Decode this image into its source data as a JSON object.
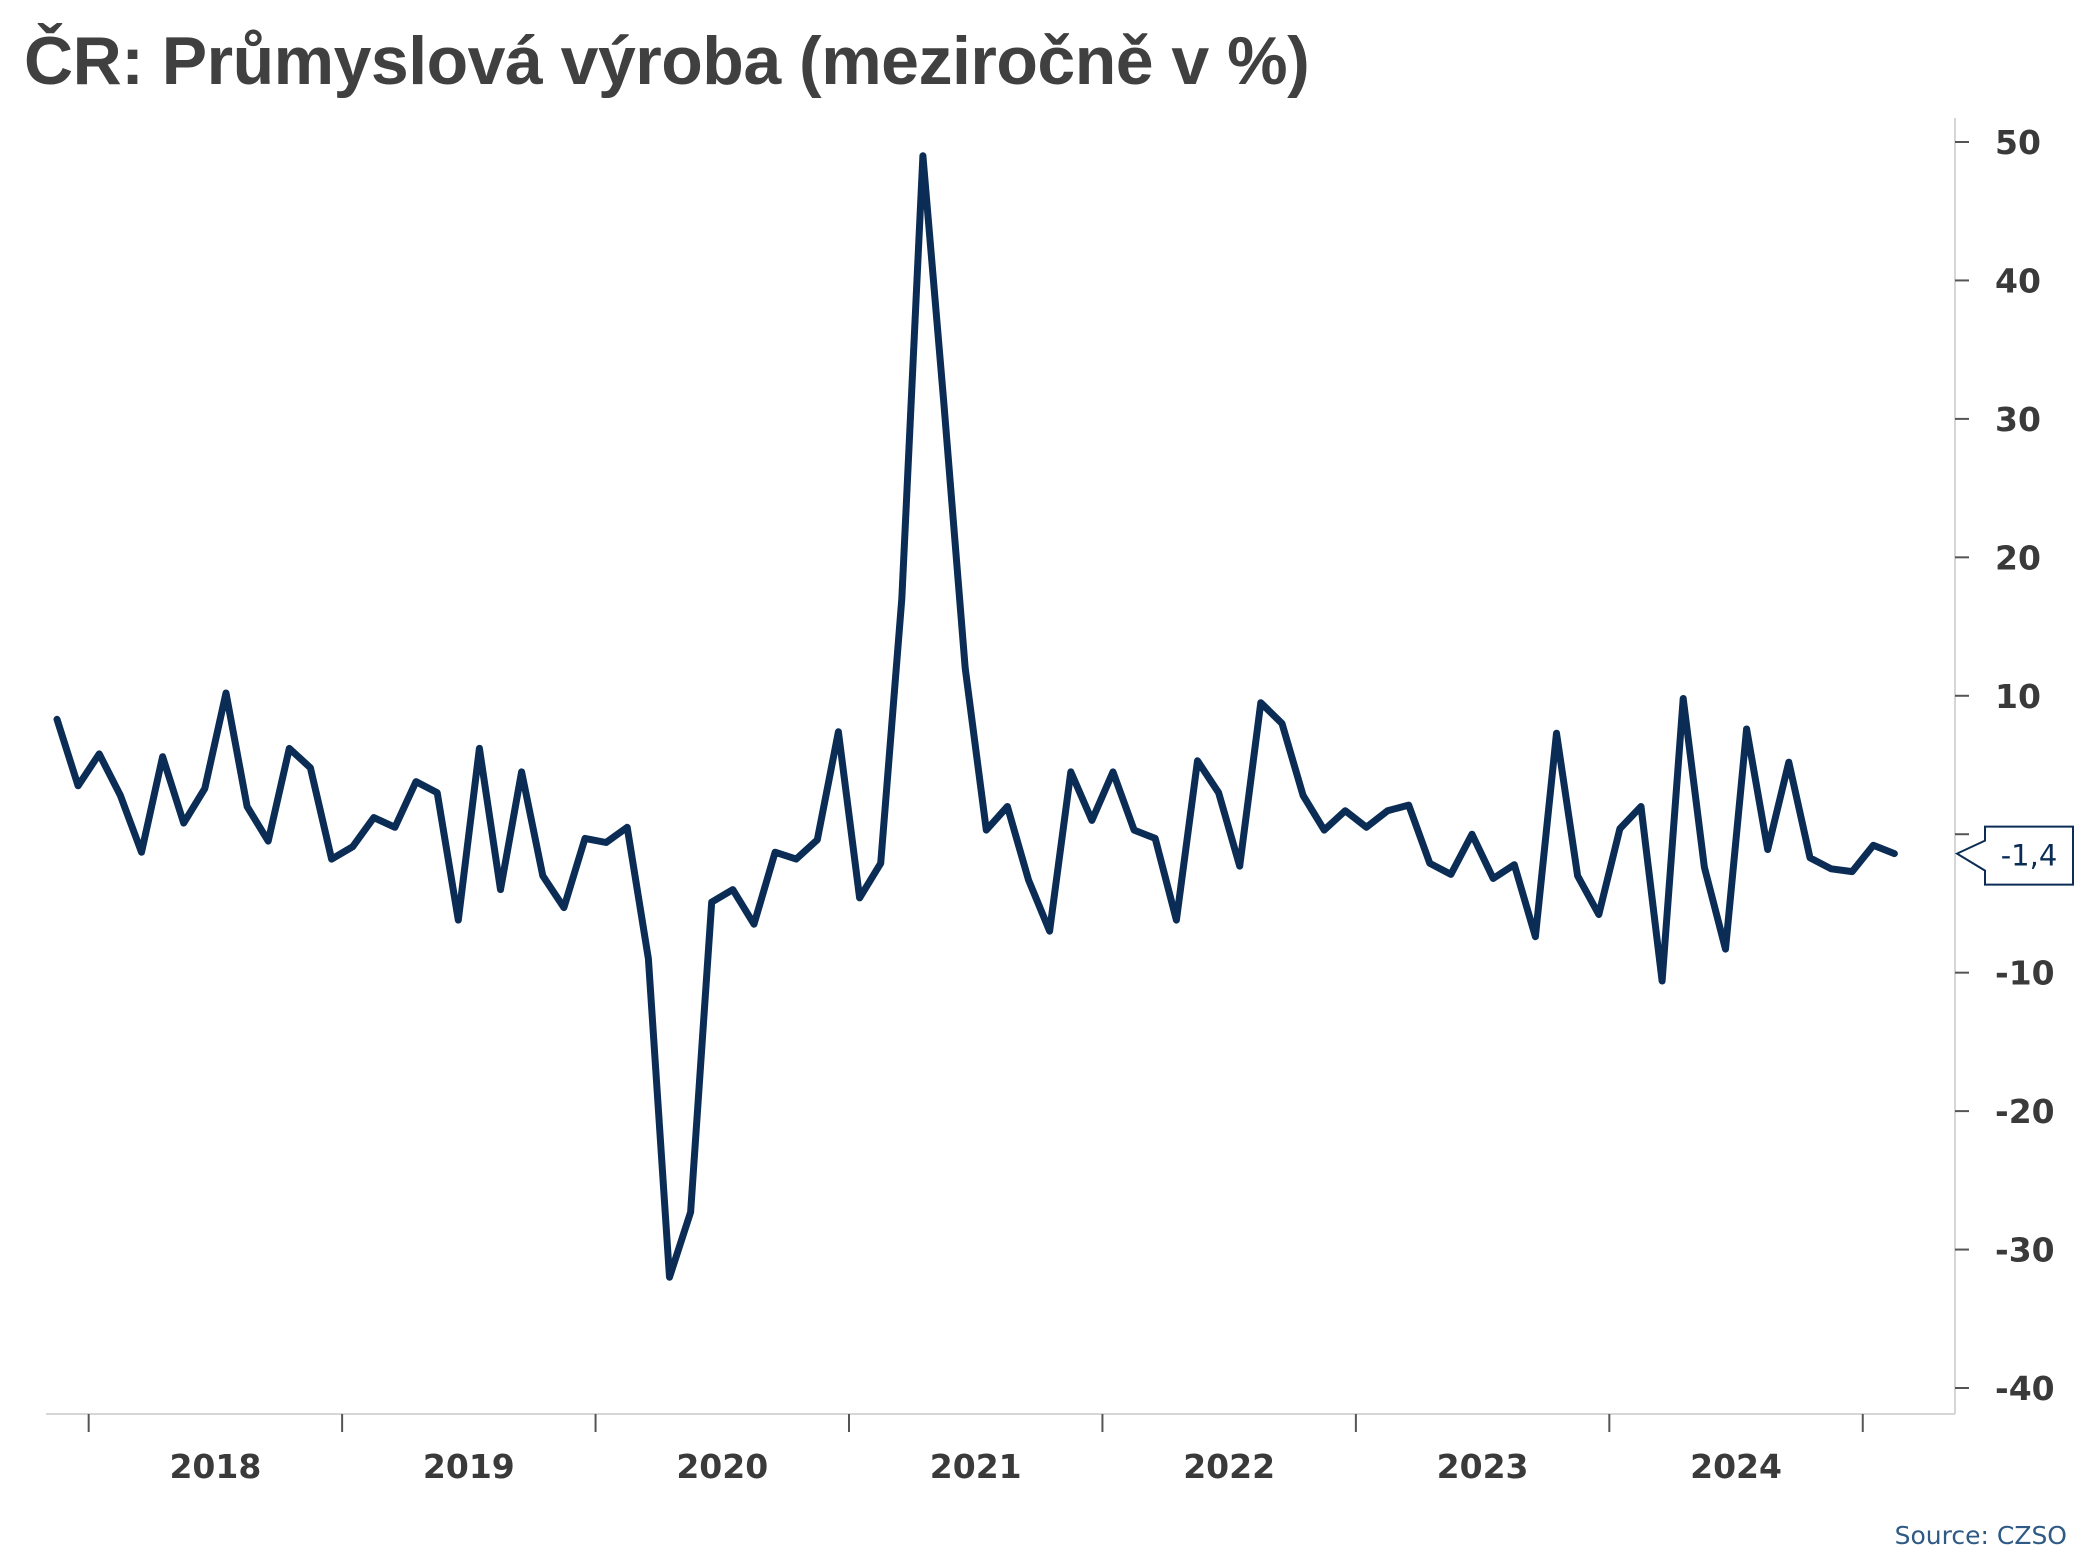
{
  "title": "ČR: Průmyslová výroba (meziročně v %)",
  "source": "Source: CZSO",
  "colors": {
    "line": "#0b2d55",
    "text": "#404040",
    "axis": "#555555",
    "source": "#2f5a86"
  },
  "chart_data": {
    "type": "line",
    "title": "ČR: Průmyslová výroba (meziročně v %)",
    "xlabel": "",
    "ylabel": "",
    "ylim": [
      -40,
      50
    ],
    "yticks": [
      50,
      40,
      30,
      20,
      10,
      "",
      -10,
      -20,
      -30,
      -40
    ],
    "ytick_values": [
      50,
      40,
      30,
      20,
      10,
      0,
      -10,
      -20,
      -30,
      -40
    ],
    "x_tick_labels": [
      "2018",
      "2019",
      "2020",
      "2021",
      "2022",
      "2023",
      "2024"
    ],
    "x_start": "2017-11",
    "grid": false,
    "y_axis_side": "right",
    "last_value_label": "-1,4",
    "series": [
      {
        "values": [
          8.3,
          3.5,
          5.8,
          2.8,
          -1.3,
          5.6,
          0.8,
          3.3,
          10.2,
          2.0,
          -0.5,
          6.2,
          4.8,
          -1.8,
          -0.9,
          1.2,
          0.5,
          3.8,
          3.0,
          -6.2,
          6.2,
          -4.0,
          4.5,
          -3.0,
          -5.3,
          -0.3,
          -0.6,
          0.5,
          -9.0,
          -32.0,
          -27.3,
          -4.9,
          -4.0,
          -6.5,
          -1.3,
          -1.8,
          -0.4,
          7.4,
          -4.6,
          -2.1,
          17.0,
          49.0,
          31.0,
          12.0,
          0.3,
          2.0,
          -3.3,
          -7.0,
          4.5,
          1.0,
          4.5,
          0.3,
          -0.3,
          -6.2,
          5.3,
          3.0,
          -2.3,
          9.5,
          8.0,
          2.8,
          0.3,
          1.7,
          0.5,
          1.7,
          2.1,
          -2.1,
          -2.9,
          0.0,
          -3.2,
          -2.2,
          -7.4,
          7.3,
          -3.0,
          -5.8,
          0.4,
          2.0,
          -10.6,
          9.8,
          -2.4,
          -8.3,
          7.6,
          -1.1,
          5.2,
          -1.7,
          -2.5,
          -2.7,
          -0.8,
          -1.4
        ]
      }
    ]
  }
}
